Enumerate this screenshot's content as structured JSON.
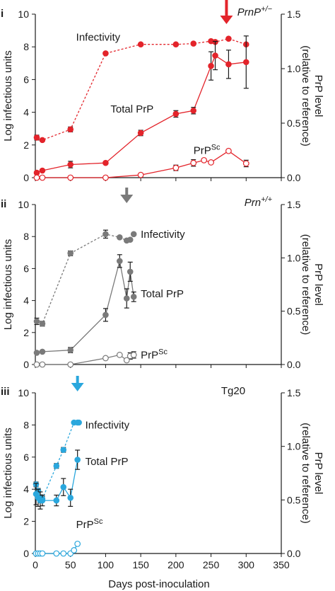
{
  "figure": {
    "shared_xlabel": "Days post-inoculation",
    "left_ylabel": "Log infectious units",
    "right_ylabel_line1": "PrP level",
    "right_ylabel_line2": "(relative to reference)",
    "colors": {
      "i": "#e3242b",
      "ii": "#7a7a7a",
      "iii": "#2aa7dd",
      "axis": "#1a1a1a"
    }
  },
  "chart_data": [
    {
      "panel": "i",
      "type": "line",
      "genotype": "PrnP",
      "genotype_sup": "+/−",
      "xlim": [
        0,
        350
      ],
      "xticks": [
        0,
        50,
        100,
        150,
        200,
        250,
        300,
        350
      ],
      "ylim_left": [
        0,
        10
      ],
      "yticks_left": [
        0,
        2,
        4,
        6,
        8,
        10
      ],
      "ylim_right": [
        0,
        1.5
      ],
      "yticks_right": [
        "0.0",
        "0.5",
        "1.0",
        "1.5"
      ],
      "arrow_day": 272,
      "series": [
        {
          "name": "Infectivity",
          "axis": "left",
          "style": "dashed",
          "marker": "filled",
          "x": [
            2,
            10,
            50,
            100,
            150,
            200,
            225,
            250,
            256,
            275,
            300
          ],
          "y": [
            2.45,
            2.3,
            2.95,
            7.6,
            8.15,
            8.15,
            8.2,
            8.35,
            8.3,
            8.5,
            8.15
          ],
          "err": [
            0.15,
            0,
            0.15,
            0,
            0,
            0,
            0,
            0,
            0,
            0,
            0
          ]
        },
        {
          "name": "Total PrP",
          "axis": "right",
          "style": "solid",
          "marker": "filled",
          "x": [
            2,
            10,
            50,
            100,
            150,
            200,
            225,
            250,
            256,
            275,
            300
          ],
          "y": [
            0.045,
            0.065,
            0.12,
            0.135,
            0.41,
            0.585,
            0.615,
            1.025,
            1.12,
            1.04,
            1.06
          ],
          "err": [
            0,
            0,
            0.03,
            0,
            0.025,
            0.03,
            0.03,
            0.13,
            0.13,
            0.13,
            0.24
          ]
        },
        {
          "name": "PrP",
          "name_sup": "Sc",
          "axis": "right",
          "style": "solid",
          "marker": "open",
          "x": [
            2,
            10,
            50,
            100,
            150,
            200,
            225,
            240,
            250,
            275,
            300
          ],
          "y": [
            0,
            0,
            0,
            0,
            0.025,
            0.09,
            0.135,
            0.16,
            0.14,
            0.245,
            0.13
          ],
          "err": [
            0,
            0,
            0,
            0,
            0,
            0.025,
            0.03,
            0,
            0,
            0,
            0.03
          ]
        }
      ]
    },
    {
      "panel": "ii",
      "type": "line",
      "genotype": "Prn",
      "genotype_sup": "+/+",
      "xlim": [
        0,
        350
      ],
      "xticks": [
        0,
        50,
        100,
        150,
        200,
        250,
        300,
        350
      ],
      "ylim_left": [
        0,
        10
      ],
      "yticks_left": [
        0,
        2,
        4,
        6,
        8,
        10
      ],
      "ylim_right": [
        0,
        1.5
      ],
      "yticks_right": [
        "0.0",
        "0.5",
        "1.0",
        "1.5"
      ],
      "arrow_day": 130,
      "series": [
        {
          "name": "Infectivity",
          "axis": "left",
          "style": "dashed",
          "marker": "filled",
          "x": [
            2,
            10,
            50,
            100,
            120,
            130,
            135,
            140
          ],
          "y": [
            2.7,
            2.55,
            6.95,
            8.15,
            7.95,
            7.75,
            7.8,
            8.15
          ],
          "err": [
            0.2,
            0.15,
            0.15,
            0.25,
            0,
            0,
            0,
            0
          ]
        },
        {
          "name": "Total PrP",
          "axis": "right",
          "style": "solid",
          "marker": "filled",
          "x": [
            2,
            10,
            50,
            100,
            120,
            130,
            135,
            140
          ],
          "y": [
            0.11,
            0.12,
            0.135,
            0.465,
            0.97,
            0.62,
            0.87,
            0.635
          ],
          "err": [
            0,
            0,
            0.025,
            0.06,
            0.06,
            0.09,
            0.09,
            0.045
          ]
        },
        {
          "name": "PrP",
          "name_sup": "Sc",
          "axis": "right",
          "style": "solid",
          "marker": "open",
          "x": [
            2,
            10,
            50,
            100,
            120,
            130,
            135,
            140
          ],
          "y": [
            0,
            0,
            0,
            0.06,
            0.09,
            0.04,
            0.08,
            0.09
          ],
          "err": [
            0,
            0,
            0,
            0,
            0,
            0,
            0.03,
            0.03
          ]
        }
      ]
    },
    {
      "panel": "iii",
      "type": "line",
      "genotype": "Tg20",
      "genotype_sup": "",
      "xlim": [
        0,
        350
      ],
      "xticks": [
        0,
        50,
        100,
        150,
        200,
        250,
        300,
        350
      ],
      "ylim_left": [
        0,
        10
      ],
      "yticks_left": [
        0,
        2,
        4,
        6,
        8,
        10
      ],
      "ylim_right": [
        0,
        1.5
      ],
      "yticks_right": [
        "0.0",
        "0.5",
        "1.0",
        "1.5"
      ],
      "arrow_day": 60,
      "series": [
        {
          "name": "Infectivity",
          "axis": "left",
          "style": "dashed",
          "marker": "filled",
          "x": [
            1,
            4,
            7,
            10,
            30,
            40,
            55,
            60,
            62
          ],
          "y": [
            4.3,
            3.9,
            3.5,
            3.4,
            5.45,
            6.45,
            8.15,
            8.15,
            8.15
          ],
          "err": [
            0.15,
            0.15,
            0.15,
            0.15,
            0.15,
            0.15,
            0,
            0,
            0
          ]
        },
        {
          "name": "Total PrP",
          "axis": "right",
          "style": "solid",
          "marker": "filled",
          "x": [
            1,
            4,
            7,
            10,
            30,
            40,
            50,
            60
          ],
          "y": [
            0.555,
            0.52,
            0.495,
            0.495,
            0.495,
            0.62,
            0.52,
            0.875
          ],
          "err": [
            0.1,
            0.08,
            0.08,
            0.05,
            0.05,
            0.08,
            0.08,
            0.09
          ]
        },
        {
          "name": "PrP",
          "name_sup": "Sc",
          "axis": "right",
          "style": "solid",
          "marker": "open",
          "x": [
            1,
            4,
            7,
            10,
            30,
            40,
            50,
            55,
            60
          ],
          "y": [
            0,
            0,
            0,
            0,
            0,
            0,
            0,
            0.03,
            0.09
          ],
          "err": [
            0,
            0,
            0,
            0,
            0,
            0,
            0,
            0,
            0
          ]
        }
      ]
    }
  ]
}
